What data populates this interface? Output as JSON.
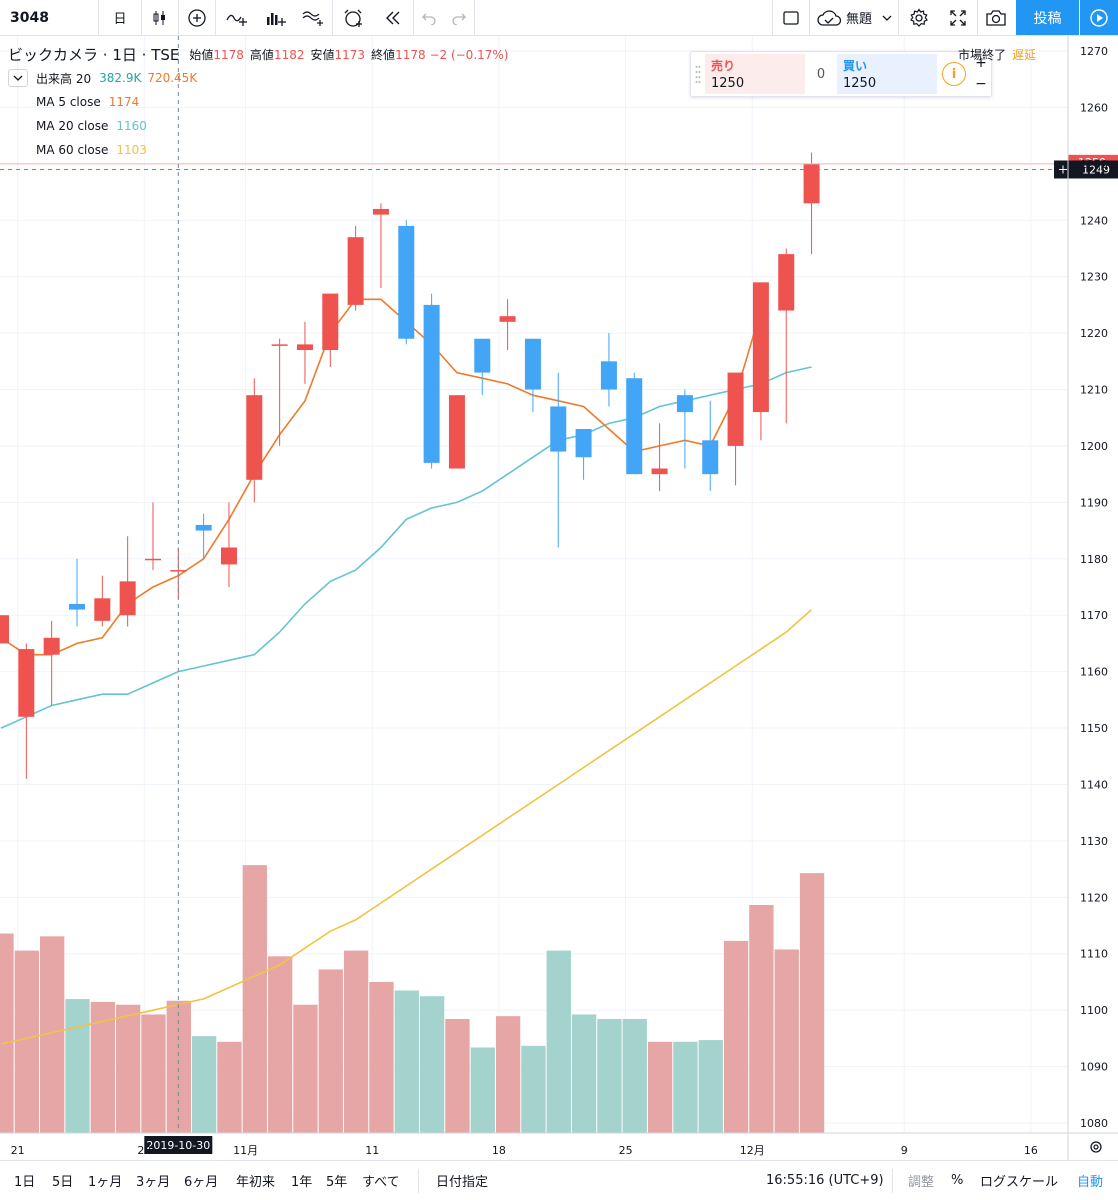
{
  "toolbar": {
    "symbol": "3048",
    "interval": "日",
    "publish_label": "投稿",
    "layout_name": "無題"
  },
  "legend": {
    "name": "ビックカメラ",
    "interval": "1日",
    "exchange": "TSE",
    "open_label": "始値",
    "open": "1178",
    "high_label": "高値",
    "high": "1182",
    "low_label": "安値",
    "low": "1173",
    "close_label": "終値",
    "close": "1178",
    "change": "−2 (−0.17%)",
    "volume_label": "出来高 20",
    "volume_value": "382.9K",
    "volume_ma": "720.45K",
    "ma5_label": "MA 5 close",
    "ma5_value": "1174",
    "ma20_label": "MA 20 close",
    "ma20_value": "1160",
    "ma60_label": "MA 60 close",
    "ma60_value": "1103"
  },
  "trade": {
    "sell_label": "売り",
    "sell_price": "1250",
    "spread": "0",
    "buy_label": "買い",
    "buy_price": "1250",
    "info_glyph": "i"
  },
  "market": {
    "status": "市場終了",
    "delay": "遅延"
  },
  "crosshair": {
    "date_label": "2019-10-30",
    "price_label": "1249"
  },
  "last_price_label": "1250",
  "bottom": {
    "ranges": [
      "1日",
      "5日",
      "1ヶ月",
      "3ヶ月",
      "6ヶ月",
      "年初来",
      "1年",
      "5年",
      "すべて"
    ],
    "goto_date": "日付指定",
    "clock": "16:55:16 (UTC+9)",
    "adjust": "調整",
    "percent": "%",
    "log_scale": "ログスケール",
    "auto": "自動"
  },
  "colors": {
    "up": "#ef5350",
    "down": "#42a5f5",
    "vol_up": "#e7a6a6",
    "vol_down": "#a4d3cd",
    "ma5": "#ef7b2a",
    "ma20": "#62c5cf",
    "ma60": "#f2c341",
    "accent": "#2196f3"
  },
  "chart_data": {
    "type": "candlestick",
    "price_axis": {
      "ticks": [
        1080,
        1090,
        1100,
        1110,
        1120,
        1130,
        1140,
        1150,
        1160,
        1170,
        1180,
        1190,
        1200,
        1210,
        1220,
        1230,
        1240,
        1250,
        1260,
        1270
      ]
    },
    "x_ticks": [
      {
        "label": "21",
        "index": 0.5
      },
      {
        "label": "28",
        "index": 5.5
      },
      {
        "label": "11月",
        "index": 9.5
      },
      {
        "label": "11",
        "index": 14.5
      },
      {
        "label": "18",
        "index": 19.5
      },
      {
        "label": "25",
        "index": 24.5
      },
      {
        "label": "12月",
        "index": 29.5
      },
      {
        "label": "9",
        "index": 35.5
      },
      {
        "label": "16",
        "index": 40.5
      }
    ],
    "candles": [
      {
        "o": 1165,
        "h": 1170,
        "l": 1165,
        "c": 1170
      },
      {
        "o": 1152,
        "h": 1165,
        "l": 1141,
        "c": 1164
      },
      {
        "o": 1163,
        "h": 1169,
        "l": 1154,
        "c": 1166
      },
      {
        "o": 1172,
        "h": 1180,
        "l": 1168,
        "c": 1171
      },
      {
        "o": 1169,
        "h": 1177,
        "l": 1168,
        "c": 1173
      },
      {
        "o": 1170,
        "h": 1184,
        "l": 1168,
        "c": 1176
      },
      {
        "o": 1180,
        "h": 1190,
        "l": 1178,
        "c": 1180
      },
      {
        "o": 1178,
        "h": 1182,
        "l": 1173,
        "c": 1178
      },
      {
        "o": 1186,
        "h": 1188,
        "l": 1180,
        "c": 1185
      },
      {
        "o": 1179,
        "h": 1190,
        "l": 1175,
        "c": 1182
      },
      {
        "o": 1194,
        "h": 1212,
        "l": 1190,
        "c": 1209
      },
      {
        "o": 1218,
        "h": 1219,
        "l": 1200,
        "c": 1218
      },
      {
        "o": 1217,
        "h": 1222,
        "l": 1211,
        "c": 1218
      },
      {
        "o": 1217,
        "h": 1227,
        "l": 1214,
        "c": 1227
      },
      {
        "o": 1225,
        "h": 1239,
        "l": 1224,
        "c": 1237
      },
      {
        "o": 1241,
        "h": 1243,
        "l": 1228,
        "c": 1242
      },
      {
        "o": 1239,
        "h": 1240,
        "l": 1218,
        "c": 1219
      },
      {
        "o": 1225,
        "h": 1227,
        "l": 1196,
        "c": 1197
      },
      {
        "o": 1196,
        "h": 1209,
        "l": 1196,
        "c": 1209
      },
      {
        "o": 1219,
        "h": 1219,
        "l": 1209,
        "c": 1213
      },
      {
        "o": 1222,
        "h": 1226,
        "l": 1217,
        "c": 1223
      },
      {
        "o": 1219,
        "h": 1219,
        "l": 1206,
        "c": 1210
      },
      {
        "o": 1207,
        "h": 1213,
        "l": 1182,
        "c": 1199
      },
      {
        "o": 1203,
        "h": 1203,
        "l": 1194,
        "c": 1198
      },
      {
        "o": 1215,
        "h": 1220,
        "l": 1207,
        "c": 1210
      },
      {
        "o": 1212,
        "h": 1213,
        "l": 1195,
        "c": 1195
      },
      {
        "o": 1195,
        "h": 1204,
        "l": 1192,
        "c": 1196
      },
      {
        "o": 1209,
        "h": 1210,
        "l": 1196,
        "c": 1206
      },
      {
        "o": 1201,
        "h": 1208,
        "l": 1192,
        "c": 1195
      },
      {
        "o": 1200,
        "h": 1213,
        "l": 1193,
        "c": 1213
      },
      {
        "o": 1206,
        "h": 1229,
        "l": 1201,
        "c": 1229
      },
      {
        "o": 1224,
        "h": 1235,
        "l": 1204,
        "c": 1234
      },
      {
        "o": 1243,
        "h": 1252,
        "l": 1234,
        "c": 1250
      }
    ],
    "volume": [
      1.15,
      1.12,
      1.145,
      1.035,
      1.03,
      1.025,
      1.008,
      1.032,
      0.97,
      0.96,
      1.27,
      1.11,
      1.025,
      1.087,
      1.12,
      1.065,
      1.05,
      1.04,
      1.0,
      0.95,
      1.005,
      0.953,
      1.12,
      1.008,
      1.0,
      1.0,
      0.96,
      0.96,
      0.963,
      1.137,
      1.2,
      1.122,
      1.256
    ],
    "volume_scale": {
      "min": 0.8,
      "max": 1.3
    },
    "ma5": [
      1166,
      1163,
      1163,
      1165,
      1166,
      1172,
      1175,
      1177,
      1180,
      1187,
      1195,
      1202,
      1208,
      1220,
      1226,
      1226,
      1222,
      1218,
      1213,
      1212,
      1211,
      1209,
      1208,
      1207,
      1203,
      1199,
      1200,
      1201,
      1200,
      1209,
      1224,
      null,
      null
    ],
    "ma5_index_offset": 1,
    "ma20": [
      1150,
      1152,
      1154,
      1155,
      1156,
      1156,
      1158,
      1160,
      1161,
      1162,
      1163,
      1167,
      1172,
      1176,
      1178,
      1182,
      1187,
      1189,
      1190,
      1192,
      1195,
      1198,
      1201,
      1202,
      1204,
      1205,
      1207,
      1208,
      1209,
      1210,
      1211,
      1213,
      1214
    ],
    "ma60": [
      1094,
      1095,
      1096,
      1097,
      1098,
      1099,
      1100,
      1101,
      1102,
      1104,
      1106,
      1108,
      1111,
      1114,
      1116,
      1119,
      1122,
      1125,
      1128,
      1131,
      1134,
      1137,
      1140,
      1143,
      1146,
      1149,
      1152,
      1155,
      1158,
      1161,
      1164,
      1167,
      1171
    ]
  }
}
